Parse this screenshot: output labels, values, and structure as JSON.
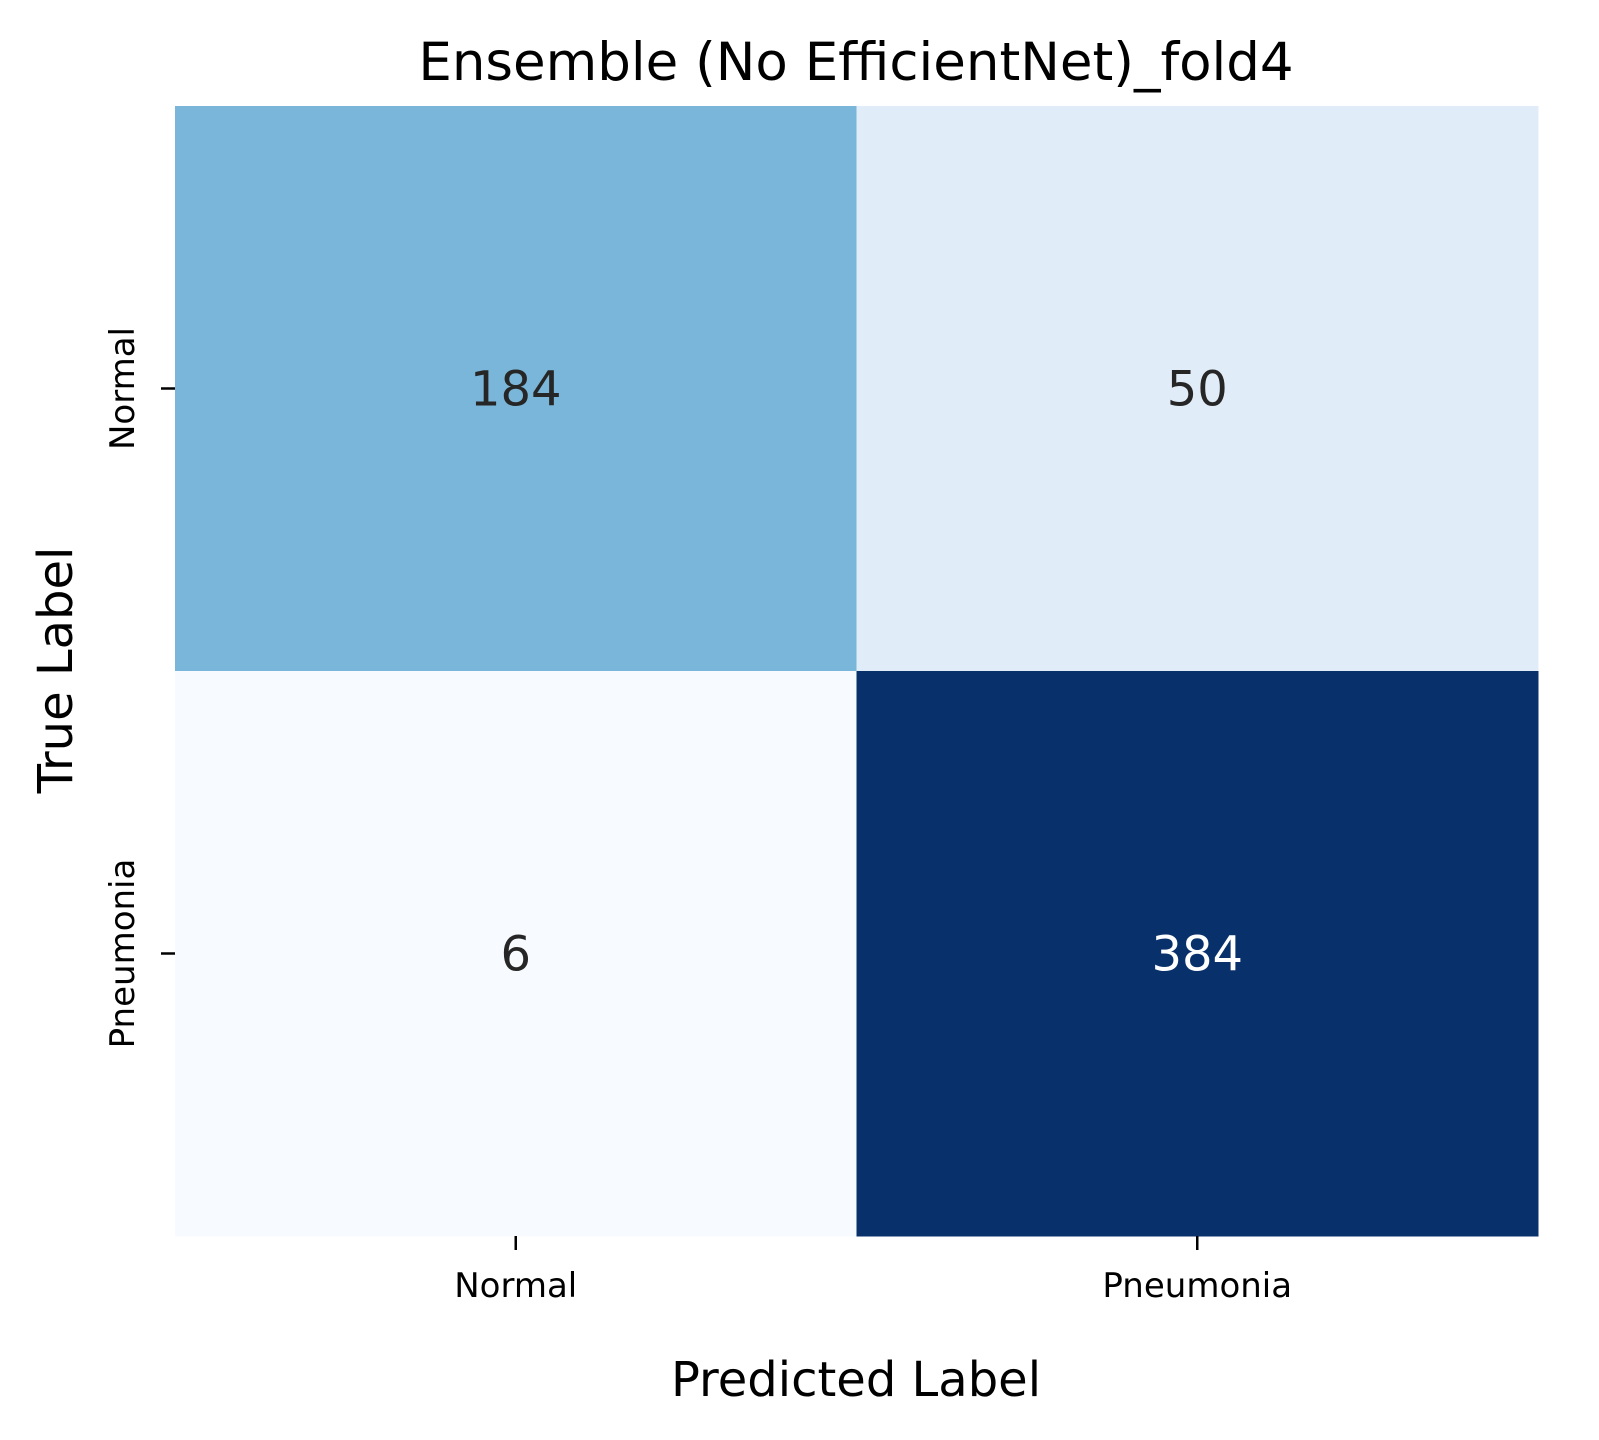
{
  "chart_data": {
    "type": "heatmap",
    "title": "Ensemble (No EfficientNet)_fold4",
    "xlabel": "Predicted Label",
    "ylabel": "True Label",
    "x_categories": [
      "Normal",
      "Pneumonia"
    ],
    "y_categories": [
      "Normal",
      "Pneumonia"
    ],
    "values": [
      [
        184,
        50
      ],
      [
        6,
        384
      ]
    ],
    "colormap": "Blues",
    "value_range": [
      6,
      384
    ],
    "colors": {
      "cells": [
        [
          "#7ab6d9",
          "#e0ecf8"
        ],
        [
          "#f7fbff",
          "#08306b"
        ]
      ],
      "text_dark": "#262626",
      "text_light": "#ffffff"
    },
    "grid": false,
    "colorbar": false
  }
}
